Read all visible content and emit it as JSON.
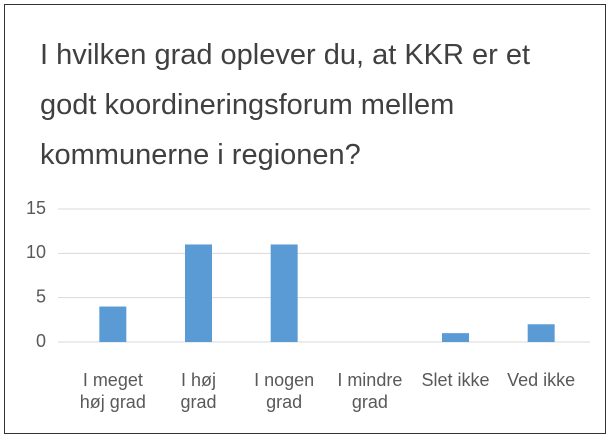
{
  "chart_data": {
    "type": "bar",
    "title": "I hvilken grad oplever du, at KKR er et godt koordineringsforum mellem kommunerne i regionen?",
    "categories": [
      "I meget høj grad",
      "I høj grad",
      "I nogen grad",
      "I mindre grad",
      "Slet ikke",
      "Ved ikke"
    ],
    "values": [
      4,
      11,
      11,
      0,
      1,
      2
    ],
    "color": "#5b9bd5",
    "ylim": [
      0,
      15
    ],
    "yticks": [
      0,
      5,
      10,
      15
    ],
    "grid": true
  }
}
